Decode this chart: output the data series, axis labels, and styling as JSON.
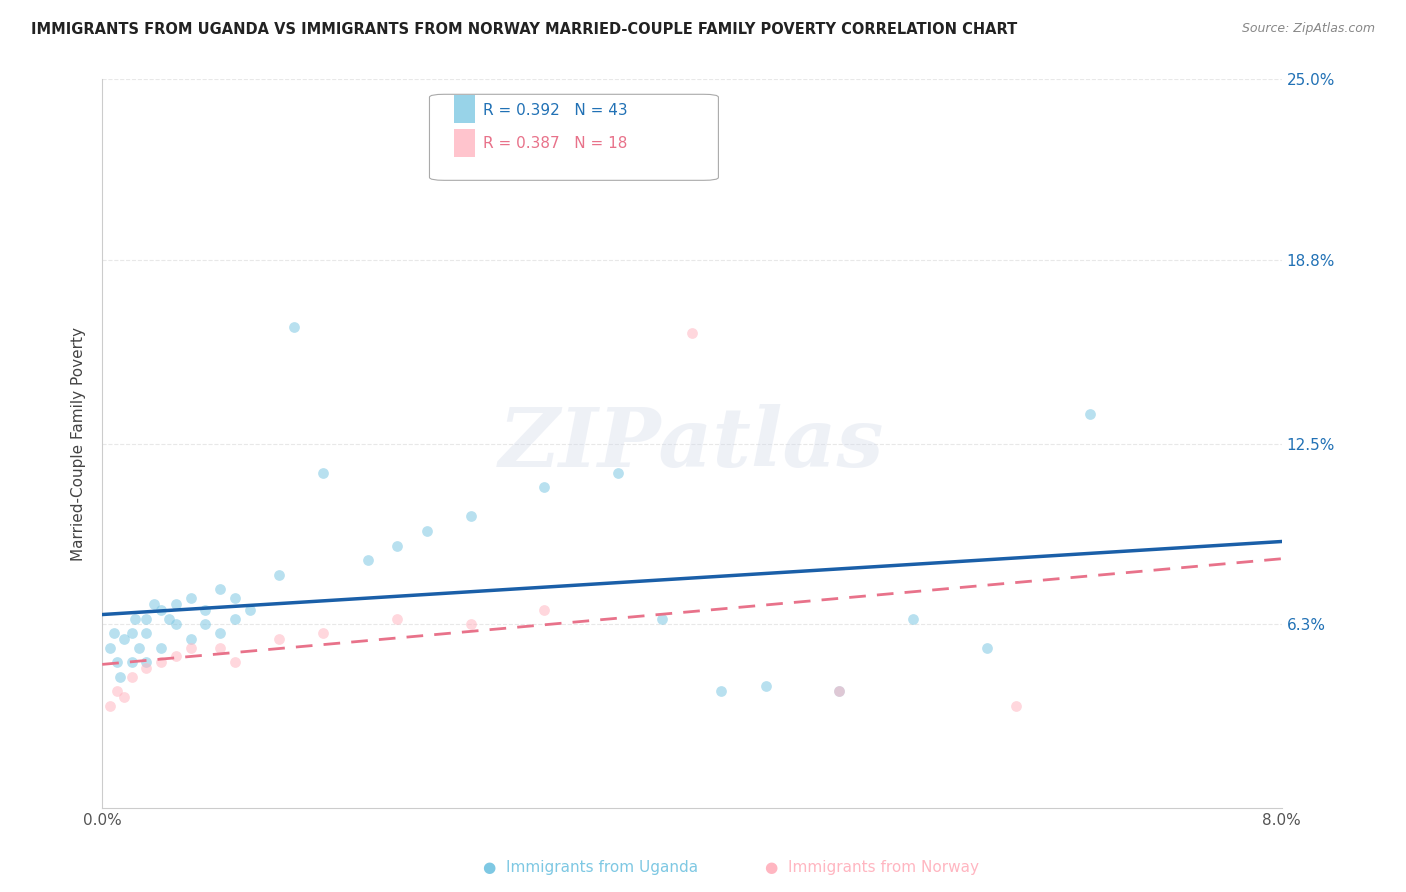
{
  "title": "IMMIGRANTS FROM UGANDA VS IMMIGRANTS FROM NORWAY MARRIED-COUPLE FAMILY POVERTY CORRELATION CHART",
  "source": "Source: ZipAtlas.com",
  "ylabel": "Married-Couple Family Poverty",
  "xlim": [
    0.0,
    0.08
  ],
  "ylim": [
    0.0,
    0.25
  ],
  "xtick_labels": [
    "0.0%",
    "8.0%"
  ],
  "xtick_values": [
    0.0,
    0.08
  ],
  "ytick_labels": [
    "25.0%",
    "18.8%",
    "12.5%",
    "6.3%"
  ],
  "ytick_values": [
    0.25,
    0.188,
    0.125,
    0.063
  ],
  "grid_color": "#e8e8e8",
  "color_uganda": "#7ec8e3",
  "color_norway": "#ffb6c1",
  "color_uganda_line": "#1a5fa8",
  "color_norway_line": "#e8728a",
  "watermark_text": "ZIPatlas",
  "legend_r1": "R = 0.392",
  "legend_n1": "N = 43",
  "legend_r2": "R = 0.387",
  "legend_n2": "N = 18",
  "uganda_x": [
    0.0005,
    0.0008,
    0.001,
    0.0012,
    0.0015,
    0.002,
    0.002,
    0.0022,
    0.0025,
    0.003,
    0.003,
    0.003,
    0.0035,
    0.004,
    0.004,
    0.0045,
    0.005,
    0.005,
    0.006,
    0.006,
    0.007,
    0.007,
    0.008,
    0.008,
    0.009,
    0.009,
    0.01,
    0.012,
    0.013,
    0.015,
    0.018,
    0.02,
    0.022,
    0.025,
    0.03,
    0.035,
    0.038,
    0.042,
    0.045,
    0.05,
    0.055,
    0.06,
    0.067
  ],
  "uganda_y": [
    0.055,
    0.06,
    0.05,
    0.045,
    0.058,
    0.06,
    0.05,
    0.065,
    0.055,
    0.06,
    0.065,
    0.05,
    0.07,
    0.055,
    0.068,
    0.065,
    0.063,
    0.07,
    0.058,
    0.072,
    0.063,
    0.068,
    0.06,
    0.075,
    0.065,
    0.072,
    0.068,
    0.08,
    0.165,
    0.115,
    0.085,
    0.09,
    0.095,
    0.1,
    0.11,
    0.115,
    0.065,
    0.04,
    0.042,
    0.04,
    0.065,
    0.055,
    0.135
  ],
  "norway_x": [
    0.0005,
    0.001,
    0.0015,
    0.002,
    0.003,
    0.004,
    0.005,
    0.006,
    0.008,
    0.009,
    0.012,
    0.015,
    0.02,
    0.025,
    0.03,
    0.04,
    0.05,
    0.062
  ],
  "norway_y": [
    0.035,
    0.04,
    0.038,
    0.045,
    0.048,
    0.05,
    0.052,
    0.055,
    0.055,
    0.05,
    0.058,
    0.06,
    0.065,
    0.063,
    0.068,
    0.163,
    0.04,
    0.035
  ],
  "marker_size": 60,
  "marker_alpha": 0.55
}
